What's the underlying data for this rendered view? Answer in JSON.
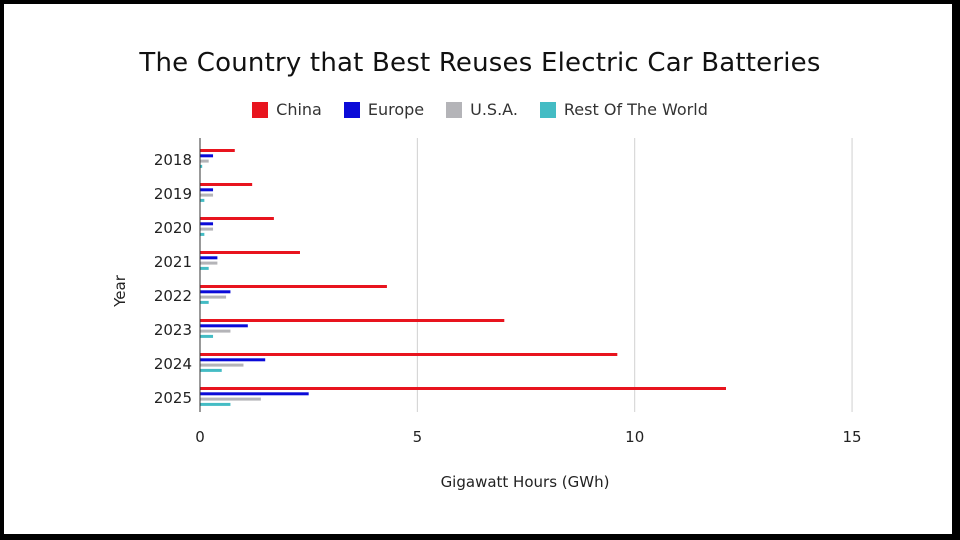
{
  "chart_data": {
    "type": "bar",
    "orientation": "horizontal",
    "title": "The Country that Best Reuses Electric Car Batteries",
    "xlabel": "Gigawatt Hours (GWh)",
    "ylabel": "Year",
    "xlim": [
      0,
      17
    ],
    "xticks": [
      "0",
      "5",
      "10",
      "15"
    ],
    "grid": "vertical",
    "legend_position": "top",
    "categories": [
      "2018",
      "2019",
      "2020",
      "2021",
      "2022",
      "2023",
      "2024",
      "2025"
    ],
    "series": [
      {
        "name": "China",
        "color": "#e8141e",
        "values": [
          0.8,
          1.2,
          1.7,
          2.3,
          4.3,
          7.0,
          9.6,
          12.1
        ]
      },
      {
        "name": "Europe",
        "color": "#0a0ad8",
        "values": [
          0.3,
          0.3,
          0.3,
          0.4,
          0.7,
          1.1,
          1.5,
          2.5
        ]
      },
      {
        "name": "U.S.A.",
        "color": "#b4b4b8",
        "values": [
          0.2,
          0.3,
          0.3,
          0.4,
          0.6,
          0.7,
          1.0,
          1.4
        ]
      },
      {
        "name": "Rest Of The World",
        "color": "#44bcc4",
        "values": [
          0.05,
          0.1,
          0.1,
          0.2,
          0.2,
          0.3,
          0.5,
          0.7
        ]
      }
    ]
  }
}
